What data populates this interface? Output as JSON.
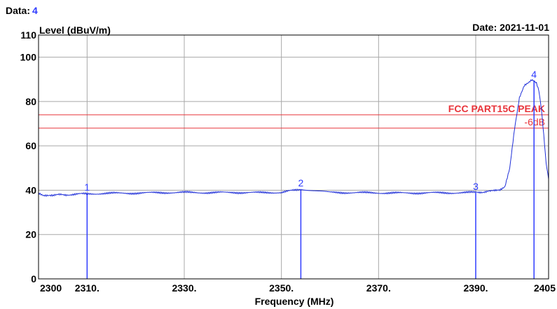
{
  "header": {
    "data_label": "Data:",
    "data_value": "4",
    "date_label": "Date: 2021-11-01"
  },
  "colors": {
    "trace": "#1f2fd8",
    "marker": "#2f3cff",
    "limit": "#e8343a",
    "grid": "#a8a8a8",
    "axis": "#000000"
  },
  "chart_data": {
    "type": "line",
    "title": "",
    "xlabel": "Frequency (MHz)",
    "ylabel": "Level (dBuV/m)",
    "xlim": [
      2300,
      2405
    ],
    "ylim": [
      0,
      110
    ],
    "grid": true,
    "x_grid": [
      2310,
      2330,
      2350,
      2370,
      2390
    ],
    "y_grid": [
      20,
      40,
      60,
      80,
      100
    ],
    "x_ticks": [
      {
        "x": 2300,
        "label": "2300"
      },
      {
        "x": 2310,
        "label": "2310."
      },
      {
        "x": 2330,
        "label": "2330."
      },
      {
        "x": 2350,
        "label": "2350."
      },
      {
        "x": 2370,
        "label": "2370."
      },
      {
        "x": 2390,
        "label": "2390."
      },
      {
        "x": 2405,
        "label": "2405"
      }
    ],
    "y_ticks": [
      {
        "y": 0,
        "label": "0"
      },
      {
        "y": 20,
        "label": "20"
      },
      {
        "y": 40,
        "label": "40"
      },
      {
        "y": 60,
        "label": "60"
      },
      {
        "y": 80,
        "label": "80"
      },
      {
        "y": 100,
        "label": "100"
      },
      {
        "y": 110,
        "label": "110"
      }
    ],
    "limit_lines": [
      {
        "name": "FCC PART15C PEAK",
        "value": 74
      },
      {
        "name": "-6dB",
        "value": 68
      }
    ],
    "markers": [
      {
        "label": "1",
        "x": 2310.0,
        "y": 38.5
      },
      {
        "label": "2",
        "x": 2354.0,
        "y": 40.5
      },
      {
        "label": "3",
        "x": 2390.0,
        "y": 38.9
      },
      {
        "label": "4",
        "x": 2402.0,
        "y": 89.5
      }
    ],
    "series": [
      {
        "x": [
          2300,
          2301,
          2303,
          2306,
          2310,
          2315,
          2320,
          2325,
          2330,
          2335,
          2340,
          2345,
          2350,
          2354,
          2360,
          2365,
          2370,
          2375,
          2380,
          2385,
          2390,
          2393,
          2395,
          2396,
          2397,
          2398,
          2399,
          2400,
          2401,
          2401.5,
          2402,
          2402.5,
          2403,
          2403.5,
          2404,
          2404.5,
          2405
        ],
        "y": [
          38.5,
          37.5,
          37.8,
          38.0,
          38.4,
          38.6,
          38.7,
          38.9,
          39.0,
          38.9,
          39.0,
          38.9,
          39.0,
          40.5,
          39.0,
          38.9,
          38.8,
          38.7,
          38.8,
          38.8,
          39.0,
          39.5,
          40.0,
          41.5,
          50.0,
          68.0,
          82.0,
          87.5,
          89.0,
          90.0,
          89.5,
          88.5,
          85.0,
          77.0,
          65.0,
          52.0,
          45.0
        ]
      }
    ]
  }
}
